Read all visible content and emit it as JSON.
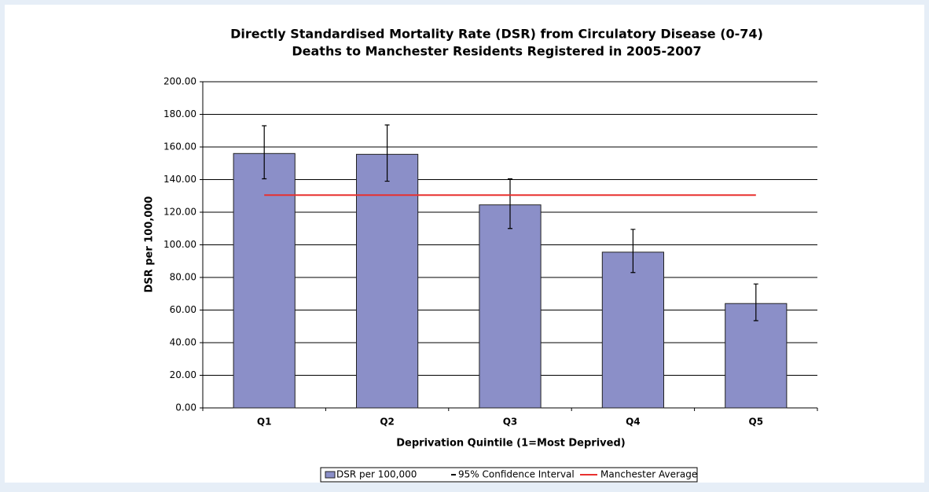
{
  "chart_data": {
    "type": "bar",
    "title": "Directly Standardised Mortality Rate (DSR) from Circulatory Disease (0-74)",
    "subtitle": "Deaths to Manchester Residents Registered in 2005-2007",
    "x_label": "Deprivation Quintile (1=Most Deprived)",
    "y_label": "DSR per 100,000",
    "categories": [
      "Q1",
      "Q2",
      "Q3",
      "Q4",
      "Q5"
    ],
    "series": [
      {
        "name": "DSR per 100,000",
        "color": "#8b8fc8",
        "values": [
          156,
          155.5,
          124.5,
          95.5,
          64
        ],
        "ci_name": "95% Confidence Interval",
        "ci": [
          [
            140.5,
            173
          ],
          [
            139,
            173.5
          ],
          [
            110,
            140.5
          ],
          [
            83,
            109.5
          ],
          [
            53.5,
            76
          ]
        ]
      },
      {
        "name": "Manchester Average",
        "color": "#e8302f",
        "type": "line",
        "value": 130.5
      }
    ],
    "ylim": [
      0,
      200
    ],
    "yticks": [
      {
        "value": 0,
        "label": "0.00"
      },
      {
        "value": 20,
        "label": "20.00"
      },
      {
        "value": 40,
        "label": "40.00"
      },
      {
        "value": 60,
        "label": "60.00"
      },
      {
        "value": 80,
        "label": "80.00"
      },
      {
        "value": 100,
        "label": "100.00"
      },
      {
        "value": 120,
        "label": "120.00"
      },
      {
        "value": 140,
        "label": "140.00"
      },
      {
        "value": 160,
        "label": "160.00"
      },
      {
        "value": 180,
        "label": "180.00"
      },
      {
        "value": 200,
        "label": "200.00"
      }
    ],
    "grid": true,
    "legend": "bottom"
  }
}
